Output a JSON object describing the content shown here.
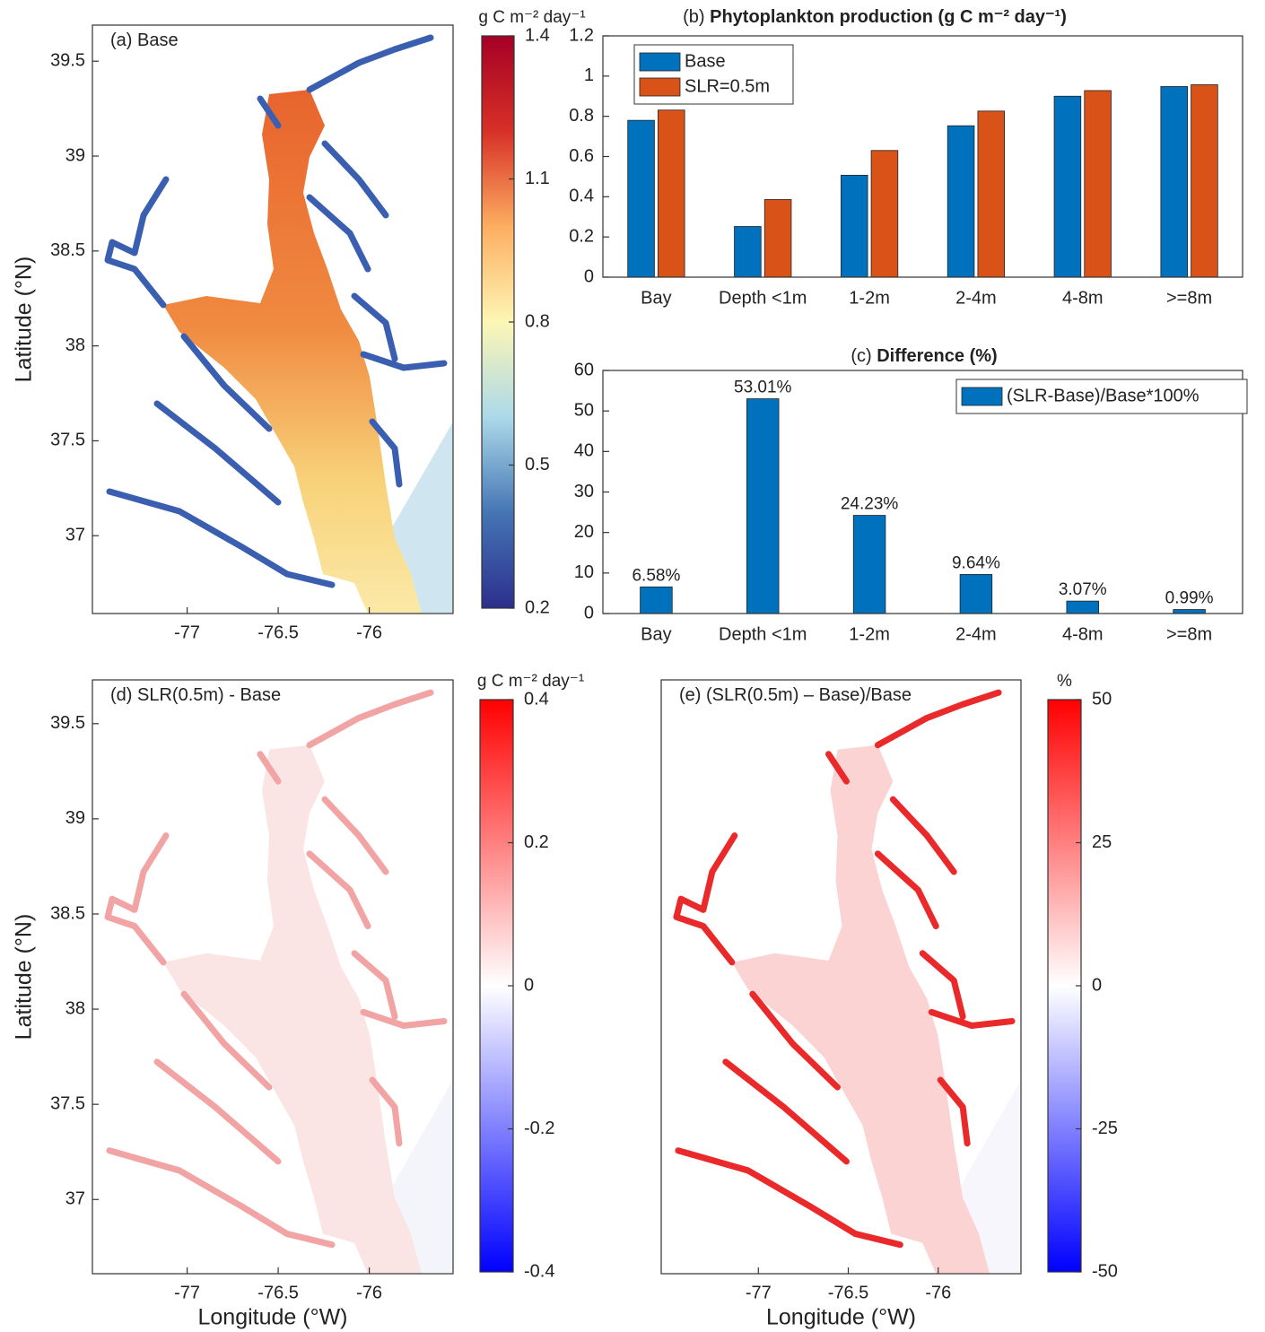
{
  "chart_data": [
    {
      "type": "map",
      "label": "(a)",
      "title": "Base",
      "xlim": [
        -77.52,
        -75.54
      ],
      "ylim": [
        36.59,
        39.69
      ],
      "xticks": [
        -77,
        -76.5,
        -76
      ],
      "yticks": [
        37,
        37.5,
        38,
        38.5,
        39,
        39.5
      ],
      "y_label": "Latitude (°N)",
      "colorbar": {
        "label": "g C m⁻² day⁻¹",
        "lim": [
          0.2,
          1.4
        ],
        "ticks": [
          0.2,
          0.5,
          0.8,
          1.1,
          1.4
        ],
        "colors": [
          "#2c2f8c",
          "#4575b4",
          "#abd9e9",
          "#fdf6b5",
          "#fdae61",
          "#d73027",
          "#a50026"
        ]
      }
    },
    {
      "type": "bar",
      "label": "(b)",
      "title": "Phytoplankton production (g C m⁻² day⁻¹)",
      "categories": [
        "Bay",
        "Depth <1m",
        "1-2m",
        "2-4m",
        "4-8m",
        ">=8m"
      ],
      "series": [
        {
          "name": "Base",
          "color": "#0072bd",
          "values": [
            0.78,
            0.252,
            0.507,
            0.753,
            0.9,
            0.948
          ]
        },
        {
          "name": "SLR=0.5m",
          "color": "#d95319",
          "values": [
            0.831,
            0.386,
            0.63,
            0.826,
            0.928,
            0.957
          ]
        }
      ],
      "ylim": [
        0,
        1.2
      ],
      "yticks": [
        0,
        0.2,
        0.4,
        0.6,
        0.8,
        1,
        1.2
      ],
      "legend": "upper left"
    },
    {
      "type": "bar",
      "label": "(c)",
      "title": "Difference (%)",
      "categories": [
        "Bay",
        "Depth <1m",
        "1-2m",
        "2-4m",
        "4-8m",
        ">=8m"
      ],
      "series": [
        {
          "name": "(SLR-Base)/Base*100%",
          "color": "#0072bd",
          "values": [
            6.58,
            53.01,
            24.23,
            9.64,
            3.07,
            0.99
          ],
          "value_labels": [
            "6.58%",
            "53.01%",
            "24.23%",
            "9.64%",
            "3.07%",
            "0.99%"
          ]
        }
      ],
      "ylim": [
        0,
        60
      ],
      "yticks": [
        0,
        10,
        20,
        30,
        40,
        50,
        60
      ],
      "legend": "upper right"
    },
    {
      "type": "map",
      "label": "(d)",
      "title": "SLR(0.5m) - Base",
      "xlim": [
        -77.52,
        -75.54
      ],
      "ylim": [
        36.61,
        39.73
      ],
      "xticks": [
        -77,
        -76.5,
        -76
      ],
      "yticks": [
        37,
        37.5,
        38,
        38.5,
        39,
        39.5
      ],
      "x_label": "Longitude (°W)",
      "y_label": "Latitude (°N)",
      "colorbar": {
        "label": "g C m⁻² day⁻¹",
        "lim": [
          -0.4,
          0.4
        ],
        "ticks": [
          -0.4,
          -0.2,
          0,
          0.2,
          0.4
        ],
        "colors": [
          "#0000ff",
          "#ffffff",
          "#ff0000"
        ]
      }
    },
    {
      "type": "map",
      "label": "(e)",
      "title": "(SLR(0.5m) – Base)/Base",
      "xlim": [
        -77.54,
        -75.54
      ],
      "ylim": [
        36.61,
        39.73
      ],
      "xticks": [
        -77,
        -76.5,
        -76
      ],
      "x_label": "Longitude (°W)",
      "colorbar": {
        "label": "%",
        "lim": [
          -50,
          50
        ],
        "ticks": [
          -50,
          -25,
          0,
          25,
          50
        ],
        "colors": [
          "#0000ff",
          "#ffffff",
          "#ff0000"
        ]
      }
    }
  ]
}
